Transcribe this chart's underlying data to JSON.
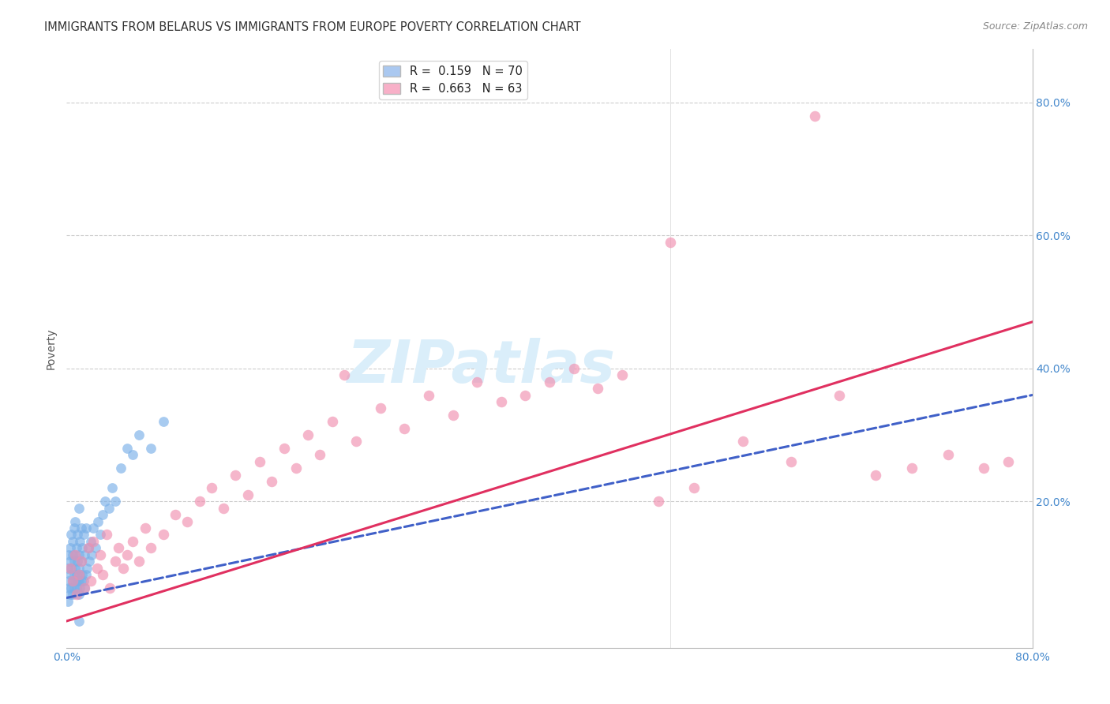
{
  "title": "IMMIGRANTS FROM BELARUS VS IMMIGRANTS FROM EUROPE POVERTY CORRELATION CHART",
  "source": "Source: ZipAtlas.com",
  "ylabel": "Poverty",
  "xlim": [
    0,
    0.8
  ],
  "ylim": [
    -0.02,
    0.88
  ],
  "x_ticks": [
    0.0,
    0.1,
    0.2,
    0.3,
    0.4,
    0.5,
    0.6,
    0.7,
    0.8
  ],
  "y_ticks": [
    0.0,
    0.2,
    0.4,
    0.6,
    0.8
  ],
  "right_y_tick_labels": [
    "",
    "20.0%",
    "40.0%",
    "60.0%",
    "80.0%"
  ],
  "legend_label1": "R =  0.159   N = 70",
  "legend_label2": "R =  0.663   N = 63",
  "legend_color1": "#aac8f0",
  "legend_color2": "#f8b0c8",
  "scatter_color1": "#7ab0e8",
  "scatter_color2": "#f090b0",
  "line_color1": "#4060c8",
  "line_color2": "#e03060",
  "watermark": "ZIPatlas",
  "watermark_color": "#daeefa",
  "belarus_x": [
    0.001,
    0.001,
    0.002,
    0.002,
    0.002,
    0.003,
    0.003,
    0.003,
    0.003,
    0.004,
    0.004,
    0.004,
    0.005,
    0.005,
    0.005,
    0.005,
    0.006,
    0.006,
    0.006,
    0.006,
    0.007,
    0.007,
    0.007,
    0.007,
    0.008,
    0.008,
    0.008,
    0.009,
    0.009,
    0.009,
    0.01,
    0.01,
    0.01,
    0.01,
    0.01,
    0.011,
    0.011,
    0.011,
    0.012,
    0.012,
    0.012,
    0.013,
    0.013,
    0.014,
    0.014,
    0.015,
    0.015,
    0.016,
    0.016,
    0.017,
    0.018,
    0.019,
    0.02,
    0.021,
    0.022,
    0.024,
    0.026,
    0.028,
    0.03,
    0.032,
    0.035,
    0.038,
    0.04,
    0.045,
    0.05,
    0.055,
    0.06,
    0.07,
    0.08,
    0.01
  ],
  "belarus_y": [
    0.05,
    0.1,
    0.08,
    0.12,
    0.07,
    0.06,
    0.09,
    0.11,
    0.13,
    0.07,
    0.1,
    0.15,
    0.08,
    0.12,
    0.06,
    0.14,
    0.07,
    0.09,
    0.11,
    0.16,
    0.08,
    0.1,
    0.12,
    0.17,
    0.07,
    0.09,
    0.13,
    0.08,
    0.11,
    0.15,
    0.06,
    0.08,
    0.1,
    0.12,
    0.19,
    0.07,
    0.09,
    0.14,
    0.08,
    0.11,
    0.16,
    0.09,
    0.13,
    0.08,
    0.15,
    0.07,
    0.12,
    0.09,
    0.16,
    0.1,
    0.13,
    0.11,
    0.14,
    0.12,
    0.16,
    0.13,
    0.17,
    0.15,
    0.18,
    0.2,
    0.19,
    0.22,
    0.2,
    0.25,
    0.28,
    0.27,
    0.3,
    0.28,
    0.32,
    0.02
  ],
  "europe_x": [
    0.003,
    0.005,
    0.007,
    0.008,
    0.01,
    0.012,
    0.015,
    0.018,
    0.02,
    0.022,
    0.025,
    0.028,
    0.03,
    0.033,
    0.036,
    0.04,
    0.043,
    0.047,
    0.05,
    0.055,
    0.06,
    0.065,
    0.07,
    0.08,
    0.09,
    0.1,
    0.11,
    0.12,
    0.13,
    0.14,
    0.15,
    0.16,
    0.17,
    0.18,
    0.19,
    0.2,
    0.21,
    0.22,
    0.24,
    0.26,
    0.28,
    0.3,
    0.32,
    0.34,
    0.36,
    0.38,
    0.4,
    0.42,
    0.44,
    0.46,
    0.49,
    0.52,
    0.56,
    0.6,
    0.64,
    0.67,
    0.7,
    0.73,
    0.76,
    0.78,
    0.5,
    0.23,
    0.62
  ],
  "europe_y": [
    0.1,
    0.08,
    0.12,
    0.06,
    0.09,
    0.11,
    0.07,
    0.13,
    0.08,
    0.14,
    0.1,
    0.12,
    0.09,
    0.15,
    0.07,
    0.11,
    0.13,
    0.1,
    0.12,
    0.14,
    0.11,
    0.16,
    0.13,
    0.15,
    0.18,
    0.17,
    0.2,
    0.22,
    0.19,
    0.24,
    0.21,
    0.26,
    0.23,
    0.28,
    0.25,
    0.3,
    0.27,
    0.32,
    0.29,
    0.34,
    0.31,
    0.36,
    0.33,
    0.38,
    0.35,
    0.36,
    0.38,
    0.4,
    0.37,
    0.39,
    0.2,
    0.22,
    0.29,
    0.26,
    0.36,
    0.24,
    0.25,
    0.27,
    0.25,
    0.26,
    0.59,
    0.39,
    0.78
  ],
  "trendline1_x": [
    0.0,
    0.8
  ],
  "trendline1_y": [
    0.055,
    0.36
  ],
  "trendline2_x": [
    0.0,
    0.8
  ],
  "trendline2_y": [
    0.02,
    0.47
  ]
}
